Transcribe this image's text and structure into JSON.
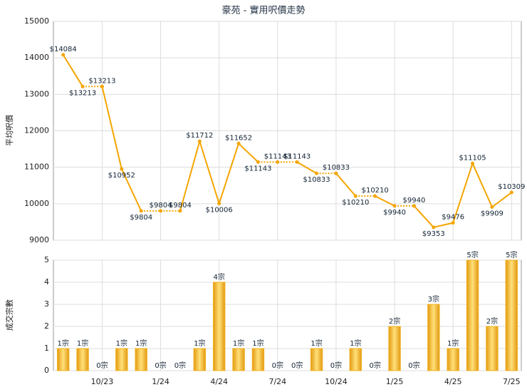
{
  "chart_data": [
    {
      "type": "line",
      "title": "豪苑 - 實用呎價走勢",
      "ylabel": "平均呎價",
      "color": "#f5a500",
      "values": [
        14084,
        13213,
        13213,
        10952,
        9804,
        9804,
        9804,
        11712,
        10006,
        11652,
        11143,
        11143,
        11143,
        10833,
        10833,
        10210,
        10210,
        9940,
        9940,
        9353,
        9476,
        11105,
        9909,
        10309
      ],
      "value_labels": [
        "$14084",
        "$13213",
        "$13213",
        "$10952",
        "$9804",
        "$9804",
        "$9804",
        "$11712",
        "$10006",
        "$11652",
        "$11143",
        "$11143",
        "$11143",
        "$10833",
        "$10833",
        "$10210",
        "$10210",
        "$9940",
        "$9940",
        "$9353",
        "$9476",
        "$11105",
        "$9909",
        "$10309"
      ],
      "ylim": [
        9000,
        15000
      ],
      "yticks": [
        9000,
        10000,
        11000,
        12000,
        13000,
        14000,
        15000
      ],
      "grid": true
    },
    {
      "type": "bar",
      "ylabel": "成交宗數",
      "color": "#f0b020",
      "categories": [
        null,
        null,
        "10/23",
        null,
        null,
        "1/24",
        null,
        null,
        "4/24",
        null,
        null,
        "7/24",
        null,
        null,
        "10/24",
        null,
        null,
        "1/25",
        null,
        null,
        "4/25",
        null,
        null,
        "7/25"
      ],
      "values": [
        1,
        1,
        0,
        1,
        1,
        0,
        0,
        1,
        4,
        1,
        1,
        0,
        0,
        1,
        0,
        1,
        0,
        2,
        0,
        3,
        1,
        5,
        2,
        5
      ],
      "value_labels": [
        "1宗",
        "1宗",
        "0宗",
        "1宗",
        "1宗",
        "0宗",
        "0宗",
        "1宗",
        "4宗",
        "1宗",
        "1宗",
        "0宗",
        "0宗",
        "1宗",
        "0宗",
        "1宗",
        "0宗",
        "2宗",
        "0宗",
        "3宗",
        "1宗",
        "5宗",
        "2宗",
        "5宗"
      ],
      "ylim": [
        0,
        5
      ],
      "yticks": [
        0,
        1,
        2,
        3,
        4,
        5
      ],
      "grid": true
    }
  ]
}
